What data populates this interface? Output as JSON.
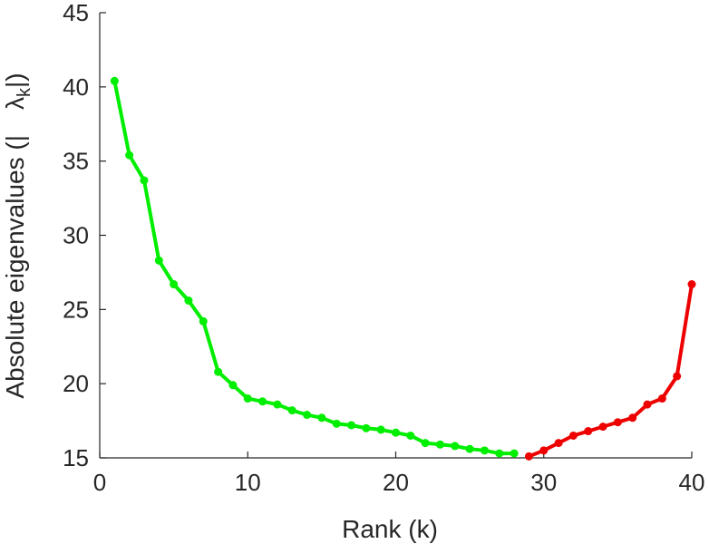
{
  "chart_data": {
    "type": "line",
    "xlabel": "Rank (k)",
    "ylabel": {
      "prefix": "Absolute eigenvalues (|",
      "symbol": "λ",
      "subscript": "k",
      "suffix": "|)"
    },
    "xlim": [
      0,
      40
    ],
    "ylim": [
      15,
      45
    ],
    "xticks": [
      0,
      10,
      20,
      30,
      40
    ],
    "yticks": [
      15,
      20,
      25,
      30,
      35,
      40,
      45
    ],
    "grid": false,
    "series": [
      {
        "color": "#00ee00",
        "points": [
          [
            1,
            40.4
          ],
          [
            2,
            35.4
          ],
          [
            3,
            33.7
          ],
          [
            4,
            28.3
          ],
          [
            5,
            26.7
          ],
          [
            6,
            25.6
          ],
          [
            7,
            24.2
          ],
          [
            8,
            20.8
          ],
          [
            9,
            19.9
          ],
          [
            10,
            19.0
          ],
          [
            11,
            18.8
          ],
          [
            12,
            18.6
          ],
          [
            13,
            18.2
          ],
          [
            14,
            17.9
          ],
          [
            15,
            17.7
          ],
          [
            16,
            17.3
          ],
          [
            17,
            17.2
          ],
          [
            18,
            17.0
          ],
          [
            19,
            16.9
          ],
          [
            20,
            16.7
          ],
          [
            21,
            16.5
          ],
          [
            22,
            16.0
          ],
          [
            23,
            15.9
          ],
          [
            24,
            15.8
          ],
          [
            25,
            15.6
          ],
          [
            26,
            15.5
          ],
          [
            27,
            15.3
          ],
          [
            28,
            15.3
          ]
        ]
      },
      {
        "color": "#ee0000",
        "points": [
          [
            29,
            15.1
          ],
          [
            30,
            15.5
          ],
          [
            31,
            16.0
          ],
          [
            32,
            16.5
          ],
          [
            33,
            16.8
          ],
          [
            34,
            17.1
          ],
          [
            35,
            17.4
          ],
          [
            36,
            17.7
          ],
          [
            37,
            18.6
          ],
          [
            38,
            19.0
          ],
          [
            39,
            20.5
          ],
          [
            40,
            26.7
          ]
        ]
      }
    ]
  }
}
